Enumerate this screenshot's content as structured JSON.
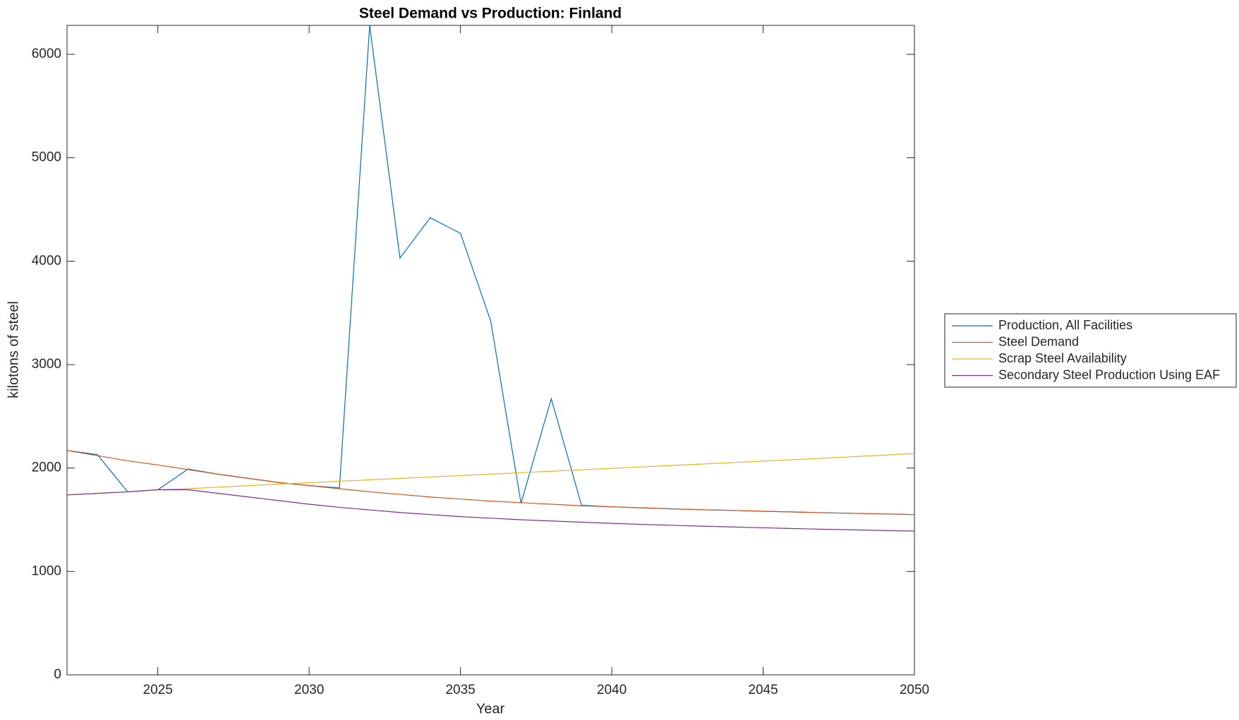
{
  "chart_data": {
    "type": "line",
    "title": "Steel Demand vs Production: Finland",
    "x_label": "Year",
    "y_label": "kilotons of steel",
    "x": [
      2022,
      2023,
      2024,
      2025,
      2026,
      2027,
      2028,
      2029,
      2030,
      2031,
      2032,
      2033,
      2034,
      2035,
      2036,
      2037,
      2038,
      2039,
      2040,
      2041,
      2042,
      2043,
      2044,
      2045,
      2046,
      2047,
      2048,
      2049,
      2050
    ],
    "series": [
      {
        "name": "Production, All Facilities",
        "color": "#0072bd",
        "values": [
          2170,
          2130,
          1770,
          1790,
          1990,
          1940,
          1900,
          1860,
          1830,
          1808,
          6280,
          4030,
          4420,
          4270,
          3420,
          1660,
          2670,
          1640,
          1625,
          1615,
          1605,
          1597,
          1590,
          1582,
          1575,
          1568,
          1562,
          1556,
          1550
        ]
      },
      {
        "name": "Steel Demand",
        "color": "#d95319",
        "values": [
          2170,
          2120,
          2070,
          2030,
          1985,
          1940,
          1900,
          1860,
          1830,
          1800,
          1770,
          1745,
          1720,
          1700,
          1680,
          1665,
          1650,
          1635,
          1625,
          1615,
          1605,
          1597,
          1590,
          1582,
          1575,
          1568,
          1562,
          1556,
          1550
        ]
      },
      {
        "name": "Scrap Steel Availability",
        "color": "#edb120",
        "values": [
          1740,
          1755,
          1770,
          1790,
          1800,
          1815,
          1830,
          1845,
          1858,
          1872,
          1886,
          1900,
          1913,
          1927,
          1941,
          1955,
          1969,
          1983,
          1997,
          2011,
          2025,
          2039,
          2053,
          2067,
          2081,
          2095,
          2110,
          2125,
          2140
        ]
      },
      {
        "name": "Secondary Steel Production Using EAF",
        "color": "#7e2f8e",
        "values": [
          1740,
          1755,
          1770,
          1790,
          1790,
          1755,
          1720,
          1685,
          1650,
          1620,
          1595,
          1570,
          1550,
          1530,
          1515,
          1500,
          1488,
          1476,
          1465,
          1455,
          1446,
          1438,
          1430,
          1422,
          1415,
          1408,
          1402,
          1396,
          1390
        ]
      }
    ],
    "xlim": [
      2022,
      2050
    ],
    "xticks": [
      2025,
      2030,
      2035,
      2040,
      2045,
      2050
    ],
    "ylim": [
      0,
      6280
    ],
    "yticks": [
      0,
      1000,
      2000,
      3000,
      4000,
      5000,
      6000
    ],
    "grid": false,
    "legend": "east-outside"
  }
}
